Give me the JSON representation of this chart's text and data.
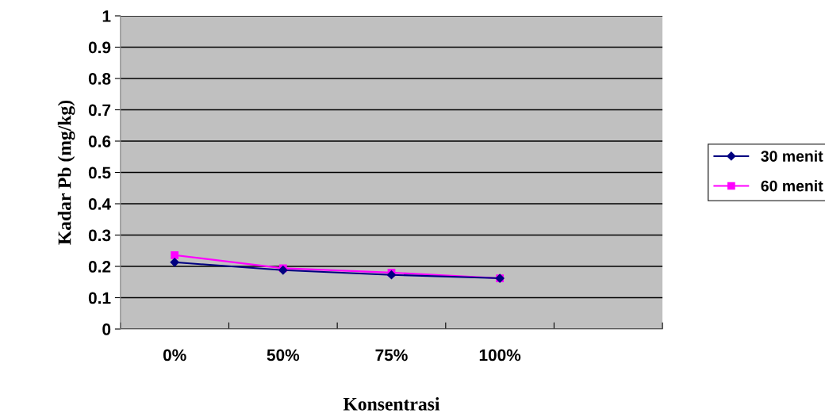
{
  "chart_data": {
    "type": "line",
    "xlabel": "Konsentrasi",
    "ylabel": "Kadar Pb (mg/kg)",
    "categories": [
      "0%",
      "50%",
      "75%",
      "100%",
      null
    ],
    "series": [
      {
        "name": "30 menit",
        "color": "#000080",
        "marker": "diamond",
        "values": [
          0.213,
          0.188,
          0.173,
          0.162,
          null
        ]
      },
      {
        "name": "60 menit",
        "color": "#ff00ff",
        "marker": "square",
        "values": [
          0.236,
          0.194,
          0.18,
          0.162,
          null
        ]
      }
    ],
    "ylim": [
      0,
      1
    ],
    "yticks": [
      0,
      0.1,
      0.2,
      0.3,
      0.4,
      0.5,
      0.6,
      0.7,
      0.8,
      0.9,
      1
    ],
    "grid": "y",
    "legend": "right"
  }
}
